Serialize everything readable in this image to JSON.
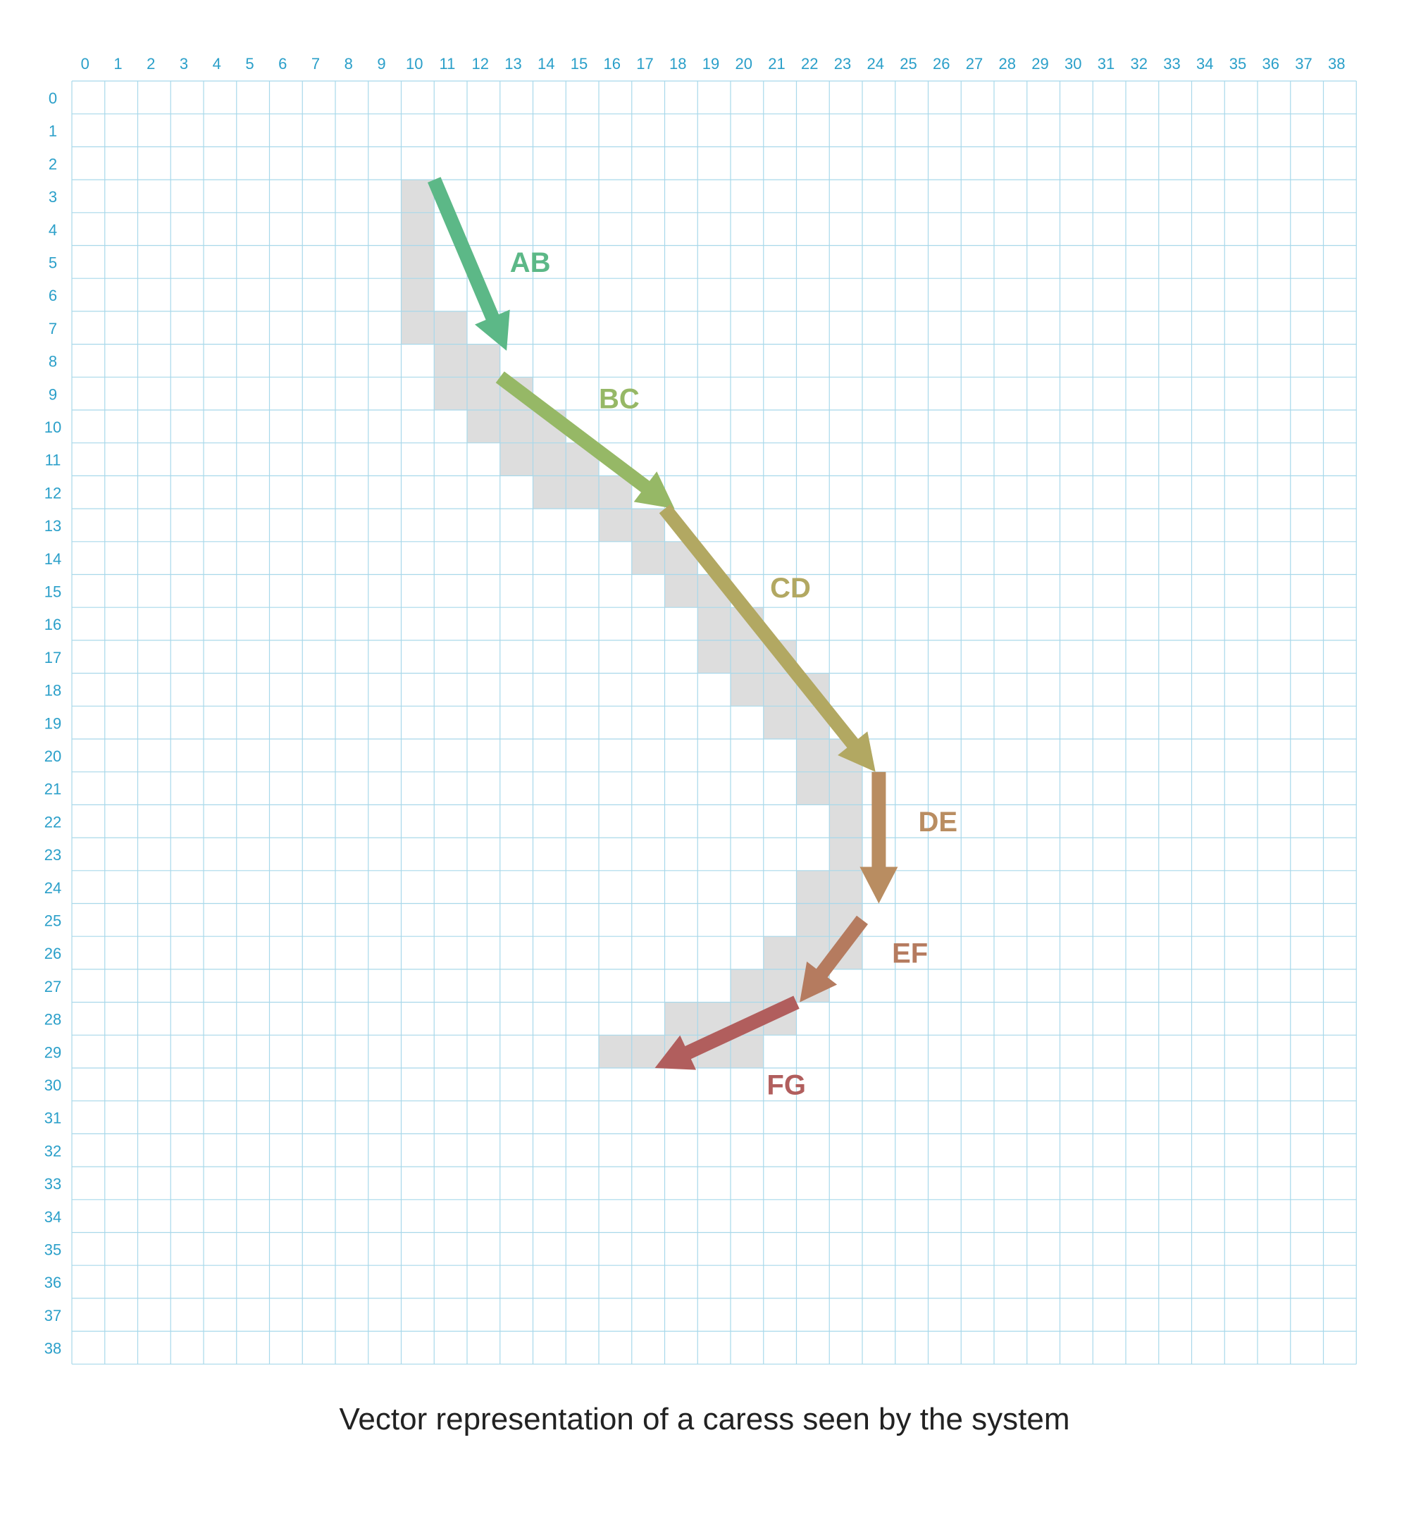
{
  "grid": {
    "columns": [
      "0",
      "1",
      "2",
      "3",
      "4",
      "5",
      "6",
      "7",
      "8",
      "9",
      "10",
      "11",
      "12",
      "13",
      "14",
      "15",
      "16",
      "17",
      "18",
      "19",
      "20",
      "21",
      "22",
      "23",
      "24",
      "25",
      "26",
      "27",
      "28",
      "29",
      "30",
      "31",
      "32",
      "33",
      "34",
      "35",
      "36",
      "37",
      "38"
    ],
    "rows": [
      "0",
      "1",
      "2",
      "3",
      "4",
      "5",
      "6",
      "7",
      "8",
      "9",
      "10",
      "11",
      "12",
      "13",
      "14",
      "15",
      "16",
      "17",
      "18",
      "19",
      "20",
      "21",
      "22",
      "23",
      "24",
      "25",
      "26",
      "27",
      "28",
      "29",
      "30",
      "31",
      "32",
      "33",
      "34",
      "35",
      "36",
      "37",
      "38"
    ],
    "line_color": "#a8d8ea",
    "label_color": "#2a9fc9",
    "highlight_color": "#dddddd"
  },
  "highlighted_cells": [
    [
      11,
      3
    ],
    [
      11,
      4
    ],
    [
      11,
      5
    ],
    [
      11,
      6
    ],
    [
      11,
      7
    ],
    [
      12,
      7
    ],
    [
      12,
      8
    ],
    [
      13,
      8
    ],
    [
      12,
      9
    ],
    [
      13,
      9
    ],
    [
      14,
      9
    ],
    [
      13,
      10
    ],
    [
      14,
      10
    ],
    [
      15,
      10
    ],
    [
      14,
      11
    ],
    [
      15,
      11
    ],
    [
      16,
      11
    ],
    [
      15,
      12
    ],
    [
      16,
      12
    ],
    [
      17,
      12
    ],
    [
      17,
      13
    ],
    [
      18,
      13
    ],
    [
      18,
      14
    ],
    [
      19,
      14
    ],
    [
      19,
      15
    ],
    [
      20,
      15
    ],
    [
      20,
      16
    ],
    [
      21,
      16
    ],
    [
      20,
      17
    ],
    [
      21,
      17
    ],
    [
      22,
      17
    ],
    [
      21,
      18
    ],
    [
      22,
      18
    ],
    [
      23,
      18
    ],
    [
      22,
      19
    ],
    [
      23,
      19
    ],
    [
      23,
      20
    ],
    [
      24,
      20
    ],
    [
      23,
      21
    ],
    [
      24,
      21
    ],
    [
      24,
      22
    ],
    [
      24,
      23
    ],
    [
      23,
      24
    ],
    [
      24,
      24
    ],
    [
      23,
      25
    ],
    [
      24,
      25
    ],
    [
      22,
      26
    ],
    [
      23,
      26
    ],
    [
      24,
      26
    ],
    [
      21,
      27
    ],
    [
      22,
      27
    ],
    [
      23,
      27
    ],
    [
      19,
      28
    ],
    [
      20,
      28
    ],
    [
      21,
      28
    ],
    [
      22,
      28
    ],
    [
      17,
      29
    ],
    [
      18,
      29
    ],
    [
      19,
      29
    ],
    [
      20,
      29
    ],
    [
      21,
      29
    ]
  ],
  "vectors": [
    {
      "label": "AB",
      "from": [
        11,
        3
      ],
      "to": [
        13.2,
        8.2
      ],
      "color": "#5cb887",
      "label_at": [
        13.3,
        5.8
      ]
    },
    {
      "label": "BC",
      "from": [
        13,
        9
      ],
      "to": [
        18.3,
        13.0
      ],
      "color": "#96b866",
      "label_at": [
        16.0,
        9.95
      ]
    },
    {
      "label": "CD",
      "from": [
        18,
        13
      ],
      "to": [
        24.4,
        21.0
      ],
      "color": "#b2a862",
      "label_at": [
        21.2,
        15.7
      ]
    },
    {
      "label": "DE",
      "from": [
        24.5,
        21
      ],
      "to": [
        24.5,
        25.0
      ],
      "color": "#b98d61",
      "label_at": [
        25.7,
        22.8
      ]
    },
    {
      "label": "EF",
      "from": [
        24,
        25.5
      ],
      "to": [
        22.1,
        28.0
      ],
      "color": "#b57b5f",
      "label_at": [
        24.9,
        26.8
      ]
    },
    {
      "label": "FG",
      "from": [
        22,
        28
      ],
      "to": [
        17.7,
        30.0
      ],
      "color": "#b15e5d",
      "label_at": [
        21.1,
        30.8
      ]
    }
  ],
  "caption": "Vector representation of a caress seen by the system"
}
